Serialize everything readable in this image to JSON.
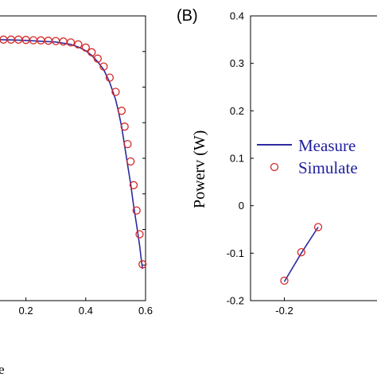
{
  "chart_data": [
    {
      "panel": "A",
      "type": "line",
      "xlim": [
        0.1,
        0.6
      ],
      "ylim": [
        0,
        1.8
      ],
      "x_ticks": [
        "0.2",
        "0.4",
        "0.6"
      ],
      "x_tick_values": [
        0.2,
        0.4,
        0.6
      ],
      "xlabel_fragment": "e",
      "series": [
        {
          "style": "line",
          "color": "#2b2ba0",
          "x": [
            0.1,
            0.15,
            0.2,
            0.25,
            0.3,
            0.35,
            0.38,
            0.4,
            0.42,
            0.44,
            0.46,
            0.48,
            0.5,
            0.51,
            0.52,
            0.53,
            0.54,
            0.55,
            0.56,
            0.57,
            0.58,
            0.585,
            0.59
          ],
          "y": [
            1.65,
            1.648,
            1.645,
            1.64,
            1.635,
            1.62,
            1.6,
            1.58,
            1.55,
            1.51,
            1.46,
            1.38,
            1.27,
            1.19,
            1.1,
            0.98,
            0.86,
            0.74,
            0.6,
            0.48,
            0.35,
            0.27,
            0.2
          ]
        },
        {
          "style": "markers",
          "marker": "circle",
          "color": "#d62728",
          "x": [
            0.1,
            0.125,
            0.15,
            0.175,
            0.2,
            0.225,
            0.25,
            0.275,
            0.3,
            0.325,
            0.35,
            0.375,
            0.4,
            0.42,
            0.44,
            0.46,
            0.48,
            0.5,
            0.52,
            0.53,
            0.54,
            0.55,
            0.56,
            0.57,
            0.58,
            0.59
          ],
          "y": [
            1.65,
            1.65,
            1.65,
            1.65,
            1.648,
            1.646,
            1.645,
            1.643,
            1.641,
            1.638,
            1.632,
            1.62,
            1.6,
            1.57,
            1.53,
            1.48,
            1.41,
            1.32,
            1.2,
            1.1,
            0.99,
            0.88,
            0.73,
            0.57,
            0.42,
            0.23
          ]
        }
      ]
    },
    {
      "panel": "B",
      "panel_label": "(B)",
      "type": "line",
      "xlim": [
        -0.3,
        0.1
      ],
      "ylim": [
        -0.2,
        0.4
      ],
      "y_ticks": [
        "0.4",
        "0.3",
        "0.2",
        "0.1",
        "0",
        "-0.1",
        "-0.2"
      ],
      "y_tick_values": [
        0.4,
        0.3,
        0.2,
        0.1,
        0,
        -0.1,
        -0.2
      ],
      "x_ticks": [
        "-0.2"
      ],
      "x_tick_values": [
        -0.2
      ],
      "ylabel": "Powerv (W)",
      "legend": {
        "placement": "center-right",
        "entries": [
          {
            "label": "Measure",
            "symbol": "line"
          },
          {
            "label": "Simulate",
            "symbol": "circle"
          }
        ]
      },
      "series": [
        {
          "style": "line",
          "color": "#2b2ba0",
          "x": [
            -0.2,
            -0.15,
            -0.1
          ],
          "y": [
            -0.16,
            -0.1,
            -0.045
          ]
        },
        {
          "style": "markers",
          "marker": "circle",
          "color": "#d62728",
          "x": [
            -0.2,
            -0.15,
            -0.1
          ],
          "y": [
            -0.158,
            -0.098,
            -0.045
          ]
        }
      ]
    }
  ]
}
